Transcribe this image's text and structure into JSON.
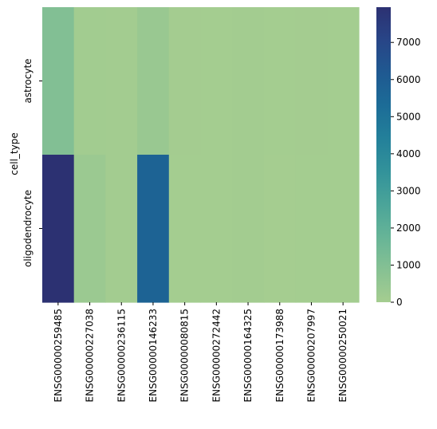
{
  "chart_data": {
    "type": "heatmap",
    "title": "",
    "xlabel": "",
    "ylabel": "cell_type",
    "rows": [
      "astrocyte",
      "oligodendrocyte"
    ],
    "columns": [
      "ENSG00000259485",
      "ENSG00000227038",
      "ENSG00000236115",
      "ENSG00000146233",
      "ENSG00000080815",
      "ENSG00000272442",
      "ENSG00000164325",
      "ENSG00000173988",
      "ENSG00000207997",
      "ENSG00000250021"
    ],
    "values": [
      [
        1000,
        80,
        60,
        350,
        40,
        30,
        50,
        20,
        40,
        30
      ],
      [
        8000,
        280,
        70,
        5700,
        30,
        20,
        60,
        10,
        30,
        20
      ]
    ],
    "colorbar": {
      "min": 0,
      "max": 7950,
      "ticks": [
        "0",
        "1000",
        "2000",
        "3000",
        "4000",
        "5000",
        "6000",
        "7000"
      ],
      "colormap": "crest",
      "stops": [
        "#a5cd90",
        "#86c193",
        "#66b497",
        "#4aa499",
        "#32929a",
        "#23809a",
        "#1c6c97",
        "#1f5991",
        "#284587",
        "#2c3172"
      ]
    }
  }
}
